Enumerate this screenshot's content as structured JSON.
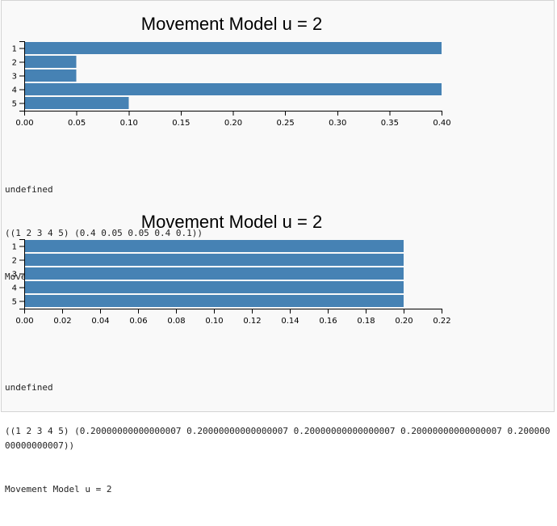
{
  "chart_data": [
    {
      "type": "bar",
      "orientation": "horizontal",
      "title": "Movement Model u = 2",
      "categories": [
        "1",
        "2",
        "3",
        "4",
        "5"
      ],
      "values": [
        0.4,
        0.05,
        0.05,
        0.4,
        0.1
      ],
      "xlim": [
        0,
        0.4
      ],
      "x_ticks": [
        "0.00",
        "0.05",
        "0.10",
        "0.15",
        "0.20",
        "0.25",
        "0.30",
        "0.35",
        "0.40"
      ],
      "bar_color": "#4682b4"
    },
    {
      "type": "bar",
      "orientation": "horizontal",
      "title": "Movement Model u = 2",
      "categories": [
        "1",
        "2",
        "3",
        "4",
        "5"
      ],
      "values": [
        0.2,
        0.2,
        0.2,
        0.2,
        0.2
      ],
      "xlim": [
        0,
        0.22
      ],
      "x_ticks": [
        "0.00",
        "0.02",
        "0.04",
        "0.06",
        "0.08",
        "0.10",
        "0.12",
        "0.14",
        "0.16",
        "0.18",
        "0.20",
        "0.22"
      ],
      "bar_color": "#4682b4"
    }
  ],
  "outputs": [
    {
      "line1": "undefined",
      "line2": "((1 2 3 4 5) (0.4 0.05 0.05 0.4 0.1))",
      "line3": "Movement Model u = 2"
    },
    {
      "line1": "undefined",
      "line2": "((1 2 3 4 5) (0.20000000000000007 0.20000000000000007 0.20000000000000007 0.20000000000000007 0.20000000000000007))",
      "line3": "Movement Model u = 2"
    }
  ]
}
